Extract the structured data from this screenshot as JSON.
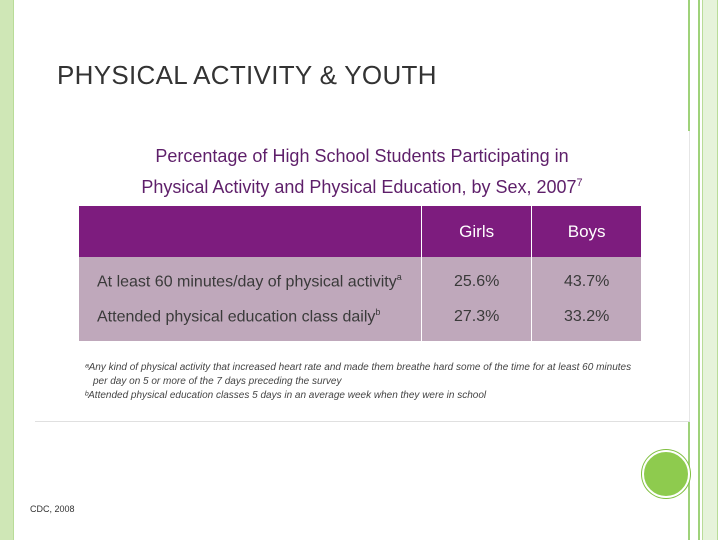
{
  "slide": {
    "title": "PHYSICAL ACTIVITY & YOUTH",
    "source": "CDC, 2008"
  },
  "figure": {
    "title_line1": "Percentage of High School Students Participating in",
    "title_line2": "Physical Activity and Physical Education, by Sex, 2007",
    "title_ref": "7",
    "columns": [
      "",
      "Girls",
      "Boys"
    ],
    "rows": [
      {
        "label": "At least 60 minutes/day of physical activity",
        "ref": "a",
        "girls": "25.6%",
        "boys": "43.7%"
      },
      {
        "label": "Attended physical education class daily",
        "ref": "b",
        "girls": "27.3%",
        "boys": "33.2%"
      }
    ],
    "footnotes": [
      "ᵃAny kind of physical activity that increased heart rate and made them breathe hard some of the time for at least 60 minutes",
      "per day on 5 or more of the 7 days preceding the survey",
      "ᵇAttended physical education classes 5 days in an average week when they were in school"
    ]
  },
  "colors": {
    "header_purple": "#7d1c7e",
    "row_mauve": "#bfa8bb",
    "accent_green": "#8ecb4e"
  }
}
